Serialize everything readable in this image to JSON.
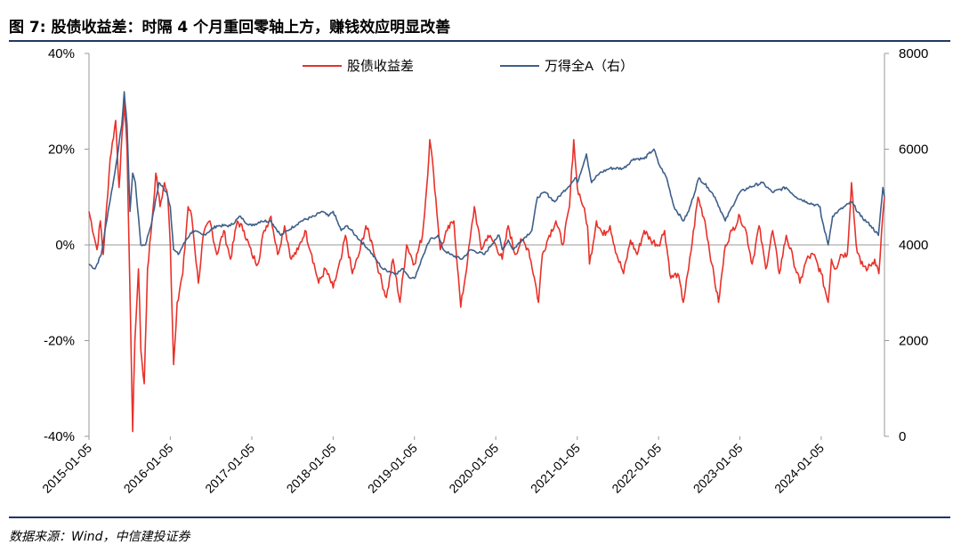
{
  "title": "图 7: 股债收益差：时隔 4 个月重回零轴上方，赚钱效应明显改善",
  "source": "数据来源：Wind，中信建投证券",
  "chart_data": {
    "type": "line",
    "x_tick_labels": [
      "2015-01-05",
      "2016-01-05",
      "2017-01-05",
      "2018-01-05",
      "2019-01-05",
      "2020-01-05",
      "2021-01-05",
      "2022-01-05",
      "2023-01-05",
      "2024-01-05"
    ],
    "x_range": [
      "2015-01-05",
      "2024-10-15"
    ],
    "y_left": {
      "label": "",
      "range": [
        -40,
        40
      ],
      "ticks": [
        -40,
        -20,
        0,
        20,
        40
      ],
      "tick_labels": [
        "-40%",
        "-20%",
        "0%",
        "20%",
        "40%"
      ]
    },
    "y_right": {
      "label": "",
      "range": [
        0,
        8000
      ],
      "ticks": [
        0,
        2000,
        4000,
        6000,
        8000
      ],
      "tick_labels": [
        "0",
        "2000",
        "4000",
        "6000",
        "8000"
      ]
    },
    "legend_position": "top-center",
    "grid": false,
    "series": [
      {
        "name": "股债收益差",
        "axis": "left",
        "color": "#e8312a",
        "points": [
          [
            "2015-01-05",
            7
          ],
          [
            "2015-02-10",
            -1
          ],
          [
            "2015-02-25",
            5
          ],
          [
            "2015-03-10",
            -2
          ],
          [
            "2015-04-10",
            18
          ],
          [
            "2015-05-05",
            26
          ],
          [
            "2015-05-20",
            12
          ],
          [
            "2015-06-12",
            30
          ],
          [
            "2015-06-25",
            20
          ],
          [
            "2015-07-08",
            -10
          ],
          [
            "2015-07-20",
            -39
          ],
          [
            "2015-07-30",
            -20
          ],
          [
            "2015-08-15",
            -5
          ],
          [
            "2015-08-26",
            -22
          ],
          [
            "2015-09-10",
            -29
          ],
          [
            "2015-09-25",
            -5
          ],
          [
            "2015-10-15",
            5
          ],
          [
            "2015-11-01",
            15
          ],
          [
            "2015-11-20",
            8
          ],
          [
            "2015-12-10",
            13
          ],
          [
            "2015-12-25",
            10
          ],
          [
            "2016-01-05",
            0
          ],
          [
            "2016-01-20",
            -25
          ],
          [
            "2016-02-05",
            -12
          ],
          [
            "2016-03-01",
            -6
          ],
          [
            "2016-03-25",
            8
          ],
          [
            "2016-04-10",
            6
          ],
          [
            "2016-05-10",
            -8
          ],
          [
            "2016-06-01",
            2
          ],
          [
            "2016-07-01",
            5
          ],
          [
            "2016-08-01",
            -2
          ],
          [
            "2016-09-01",
            3
          ],
          [
            "2016-10-01",
            -3
          ],
          [
            "2016-11-01",
            5
          ],
          [
            "2016-12-01",
            3
          ],
          [
            "2017-01-05",
            -2
          ],
          [
            "2017-02-01",
            -4
          ],
          [
            "2017-03-01",
            3
          ],
          [
            "2017-04-01",
            6
          ],
          [
            "2017-05-01",
            -2
          ],
          [
            "2017-06-01",
            4
          ],
          [
            "2017-07-01",
            -3
          ],
          [
            "2017-08-01",
            -1
          ],
          [
            "2017-09-01",
            3
          ],
          [
            "2017-10-01",
            -2
          ],
          [
            "2017-11-01",
            -8
          ],
          [
            "2017-12-01",
            -5
          ],
          [
            "2018-01-05",
            -9
          ],
          [
            "2018-02-10",
            -3
          ],
          [
            "2018-03-01",
            2
          ],
          [
            "2018-04-01",
            -6
          ],
          [
            "2018-05-01",
            -2
          ],
          [
            "2018-06-01",
            4
          ],
          [
            "2018-07-01",
            0
          ],
          [
            "2018-08-01",
            -6
          ],
          [
            "2018-09-01",
            -11
          ],
          [
            "2018-10-01",
            -3
          ],
          [
            "2018-11-01",
            -12
          ],
          [
            "2018-12-01",
            0
          ],
          [
            "2019-01-05",
            -4
          ],
          [
            "2019-02-10",
            2
          ],
          [
            "2019-03-01",
            12
          ],
          [
            "2019-03-15",
            22
          ],
          [
            "2019-04-01",
            15
          ],
          [
            "2019-05-01",
            -1
          ],
          [
            "2019-06-01",
            3
          ],
          [
            "2019-07-01",
            5
          ],
          [
            "2019-08-01",
            -13
          ],
          [
            "2019-09-01",
            -3
          ],
          [
            "2019-10-01",
            8
          ],
          [
            "2019-11-01",
            -1
          ],
          [
            "2019-12-01",
            2
          ],
          [
            "2020-01-05",
            0
          ],
          [
            "2020-02-03",
            -3
          ],
          [
            "2020-03-01",
            4
          ],
          [
            "2020-04-01",
            -2
          ],
          [
            "2020-05-01",
            1
          ],
          [
            "2020-06-01",
            -1
          ],
          [
            "2020-07-01",
            -8
          ],
          [
            "2020-07-15",
            -12
          ],
          [
            "2020-08-01",
            -2
          ],
          [
            "2020-09-01",
            2
          ],
          [
            "2020-10-01",
            5
          ],
          [
            "2020-11-01",
            0
          ],
          [
            "2020-12-01",
            8
          ],
          [
            "2020-12-20",
            22
          ],
          [
            "2021-01-05",
            12
          ],
          [
            "2021-02-01",
            8
          ],
          [
            "2021-02-20",
            4
          ],
          [
            "2021-03-01",
            -4
          ],
          [
            "2021-04-01",
            5
          ],
          [
            "2021-05-01",
            2
          ],
          [
            "2021-06-01",
            4
          ],
          [
            "2021-07-01",
            -2
          ],
          [
            "2021-08-01",
            -6
          ],
          [
            "2021-09-01",
            1
          ],
          [
            "2021-10-01",
            -2
          ],
          [
            "2021-11-01",
            3
          ],
          [
            "2021-12-01",
            1
          ],
          [
            "2022-01-05",
            0
          ],
          [
            "2022-02-01",
            3
          ],
          [
            "2022-03-01",
            -7
          ],
          [
            "2022-04-01",
            -6
          ],
          [
            "2022-04-26",
            -12
          ],
          [
            "2022-05-20",
            -5
          ],
          [
            "2022-07-01",
            10
          ],
          [
            "2022-08-01",
            5
          ],
          [
            "2022-09-01",
            -4
          ],
          [
            "2022-10-01",
            -12
          ],
          [
            "2022-11-01",
            0
          ],
          [
            "2022-12-01",
            3
          ],
          [
            "2023-01-05",
            6
          ],
          [
            "2023-02-01",
            3
          ],
          [
            "2023-03-01",
            -4
          ],
          [
            "2023-04-01",
            4
          ],
          [
            "2023-05-01",
            -5
          ],
          [
            "2023-06-01",
            3
          ],
          [
            "2023-07-01",
            -6
          ],
          [
            "2023-08-01",
            2
          ],
          [
            "2023-09-01",
            -3
          ],
          [
            "2023-10-01",
            -8
          ],
          [
            "2023-11-01",
            -3
          ],
          [
            "2023-12-01",
            -2
          ],
          [
            "2024-01-05",
            -6
          ],
          [
            "2024-02-05",
            -12
          ],
          [
            "2024-02-20",
            -3
          ],
          [
            "2024-03-10",
            -5
          ],
          [
            "2024-04-01",
            -2
          ],
          [
            "2024-05-01",
            -2
          ],
          [
            "2024-05-20",
            13
          ],
          [
            "2024-06-10",
            0
          ],
          [
            "2024-07-01",
            -4
          ],
          [
            "2024-08-01",
            -5
          ],
          [
            "2024-09-01",
            -3
          ],
          [
            "2024-09-20",
            -6
          ],
          [
            "2024-10-01",
            2
          ],
          [
            "2024-10-15",
            10
          ]
        ]
      },
      {
        "name": "万得全A（右）",
        "axis": "right",
        "color": "#3e5f8a",
        "points": [
          [
            "2015-01-05",
            3600
          ],
          [
            "2015-02-01",
            3500
          ],
          [
            "2015-03-01",
            3800
          ],
          [
            "2015-04-01",
            4700
          ],
          [
            "2015-05-01",
            5500
          ],
          [
            "2015-06-01",
            6500
          ],
          [
            "2015-06-12",
            7200
          ],
          [
            "2015-06-25",
            6500
          ],
          [
            "2015-07-08",
            4700
          ],
          [
            "2015-07-20",
            5500
          ],
          [
            "2015-08-01",
            5300
          ],
          [
            "2015-08-26",
            4000
          ],
          [
            "2015-09-15",
            4000
          ],
          [
            "2015-10-15",
            4500
          ],
          [
            "2015-11-15",
            5300
          ],
          [
            "2015-12-20",
            5100
          ],
          [
            "2016-01-05",
            4800
          ],
          [
            "2016-01-20",
            3900
          ],
          [
            "2016-02-10",
            3800
          ],
          [
            "2016-03-15",
            4100
          ],
          [
            "2016-04-15",
            4300
          ],
          [
            "2016-06-01",
            4200
          ],
          [
            "2016-08-01",
            4400
          ],
          [
            "2016-10-01",
            4400
          ],
          [
            "2016-11-15",
            4600
          ],
          [
            "2016-12-01",
            4500
          ],
          [
            "2017-01-05",
            4400
          ],
          [
            "2017-02-15",
            4500
          ],
          [
            "2017-04-01",
            4500
          ],
          [
            "2017-05-15",
            4200
          ],
          [
            "2017-06-15",
            4300
          ],
          [
            "2017-08-15",
            4500
          ],
          [
            "2017-10-15",
            4600
          ],
          [
            "2017-11-15",
            4700
          ],
          [
            "2017-12-15",
            4600
          ],
          [
            "2018-01-05",
            4700
          ],
          [
            "2018-02-10",
            4300
          ],
          [
            "2018-03-10",
            4400
          ],
          [
            "2018-04-15",
            4200
          ],
          [
            "2018-06-15",
            3900
          ],
          [
            "2018-07-15",
            3700
          ],
          [
            "2018-08-15",
            3500
          ],
          [
            "2018-10-15",
            3400
          ],
          [
            "2018-11-15",
            3500
          ],
          [
            "2018-12-20",
            3300
          ],
          [
            "2019-01-05",
            3300
          ],
          [
            "2019-02-15",
            3800
          ],
          [
            "2019-03-15",
            4100
          ],
          [
            "2019-04-20",
            4200
          ],
          [
            "2019-05-15",
            3900
          ],
          [
            "2019-06-15",
            3800
          ],
          [
            "2019-08-05",
            3700
          ],
          [
            "2019-09-15",
            3900
          ],
          [
            "2019-11-15",
            3800
          ],
          [
            "2019-12-31",
            4100
          ],
          [
            "2020-01-20",
            4200
          ],
          [
            "2020-02-03",
            3900
          ],
          [
            "2020-03-01",
            4100
          ],
          [
            "2020-03-23",
            3900
          ],
          [
            "2020-05-01",
            4100
          ],
          [
            "2020-06-15",
            4300
          ],
          [
            "2020-07-10",
            5000
          ],
          [
            "2020-08-15",
            5100
          ],
          [
            "2020-09-25",
            4900
          ],
          [
            "2020-11-01",
            5100
          ],
          [
            "2020-12-31",
            5400
          ],
          [
            "2021-01-05",
            5300
          ],
          [
            "2021-02-15",
            5900
          ],
          [
            "2021-03-10",
            5300
          ],
          [
            "2021-04-15",
            5500
          ],
          [
            "2021-06-01",
            5600
          ],
          [
            "2021-08-01",
            5600
          ],
          [
            "2021-09-15",
            5800
          ],
          [
            "2021-11-01",
            5800
          ],
          [
            "2021-12-15",
            6000
          ],
          [
            "2022-01-05",
            5700
          ],
          [
            "2022-02-10",
            5400
          ],
          [
            "2022-03-15",
            4800
          ],
          [
            "2022-04-26",
            4500
          ],
          [
            "2022-05-20",
            4700
          ],
          [
            "2022-07-05",
            5400
          ],
          [
            "2022-08-15",
            5200
          ],
          [
            "2022-09-15",
            5000
          ],
          [
            "2022-10-31",
            4500
          ],
          [
            "2022-12-01",
            4800
          ],
          [
            "2023-01-05",
            5100
          ],
          [
            "2023-02-15",
            5200
          ],
          [
            "2023-04-15",
            5300
          ],
          [
            "2023-05-31",
            5100
          ],
          [
            "2023-07-31",
            5200
          ],
          [
            "2023-09-15",
            5000
          ],
          [
            "2023-10-31",
            4900
          ],
          [
            "2023-12-31",
            4800
          ],
          [
            "2024-01-05",
            4600
          ],
          [
            "2024-02-05",
            4000
          ],
          [
            "2024-02-25",
            4600
          ],
          [
            "2024-03-20",
            4700
          ],
          [
            "2024-05-20",
            4900
          ],
          [
            "2024-06-30",
            4600
          ],
          [
            "2024-08-15",
            4400
          ],
          [
            "2024-09-18",
            4200
          ],
          [
            "2024-09-24",
            4500
          ],
          [
            "2024-10-08",
            5200
          ],
          [
            "2024-10-15",
            5000
          ]
        ]
      }
    ]
  }
}
